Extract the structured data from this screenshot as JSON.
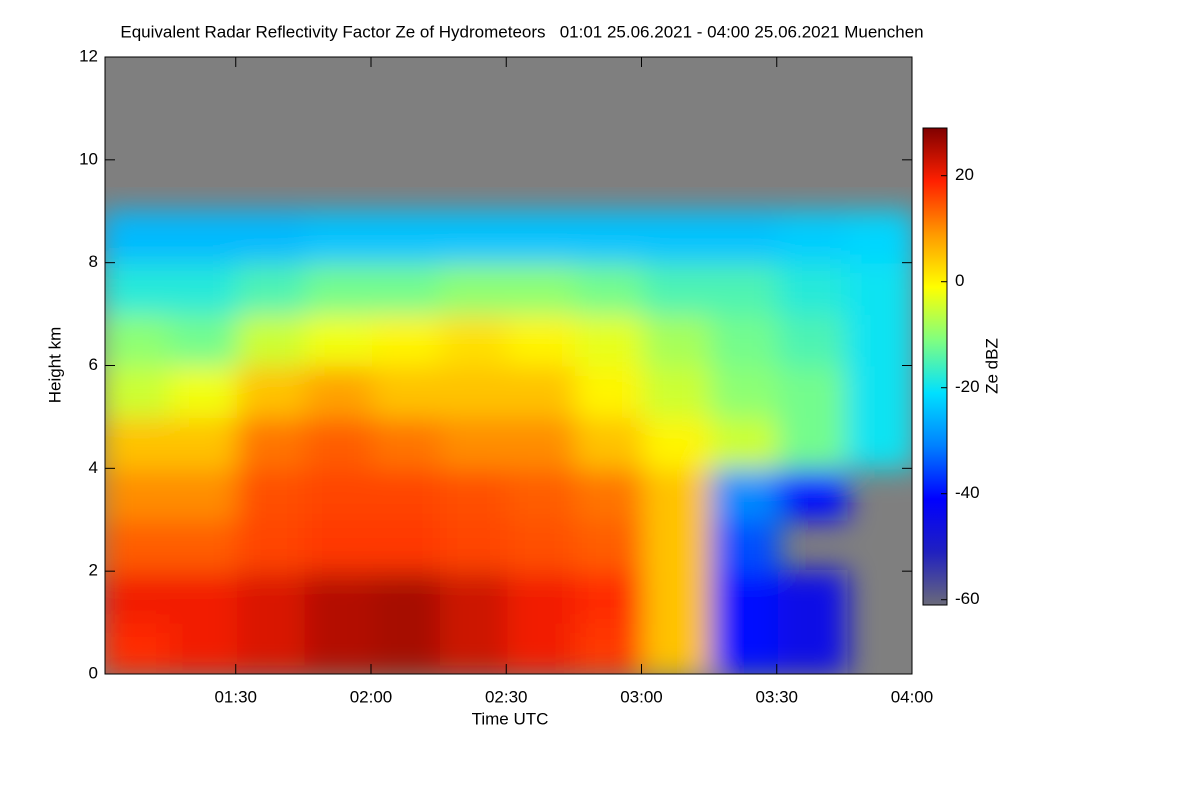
{
  "chart_data": {
    "type": "heatmap",
    "title": "Equivalent Radar Reflectivity Factor Ze of Hydrometeors   01:01 25.06.2021 - 04:00 25.06.2021 Muenchen",
    "xlabel": "Time UTC",
    "ylabel": "Height km",
    "colorbar_label": "Ze dBZ",
    "x": [
      68,
      83,
      98,
      113,
      128,
      143,
      158,
      173,
      188,
      203,
      218,
      233
    ],
    "y": [
      0.5,
      1.5,
      2.5,
      3.5,
      4.5,
      5.5,
      6.5,
      7.5,
      8.5,
      9.5,
      10.5,
      11.5
    ],
    "z": [
      [
        18,
        20,
        22,
        25,
        26,
        23,
        20,
        17,
        5,
        -40,
        -45,
        null
      ],
      [
        20,
        20,
        22,
        25,
        26,
        23,
        20,
        18,
        5,
        -40,
        -45,
        null
      ],
      [
        14,
        14,
        16,
        17,
        17,
        16,
        15,
        14,
        5,
        -35,
        null,
        null
      ],
      [
        10,
        10,
        15,
        16,
        16,
        15,
        14,
        12,
        5,
        -30,
        -40,
        null
      ],
      [
        5,
        5,
        12,
        14,
        12,
        10,
        10,
        5,
        0,
        -5,
        -12,
        -20
      ],
      [
        -5,
        -2,
        5,
        8,
        5,
        5,
        5,
        0,
        -5,
        -10,
        -12,
        -20
      ],
      [
        -10,
        -12,
        -5,
        -2,
        0,
        2,
        0,
        -3,
        -8,
        -12,
        -15,
        -20
      ],
      [
        -18,
        -18,
        -15,
        -12,
        -12,
        -10,
        -10,
        -12,
        -15,
        -15,
        -18,
        -20
      ],
      [
        -25,
        -25,
        -25,
        -24,
        -24,
        -24,
        -24,
        -24,
        -24,
        -24,
        -23,
        -22
      ],
      [
        null,
        null,
        null,
        null,
        null,
        null,
        null,
        null,
        null,
        null,
        null,
        null
      ],
      [
        null,
        null,
        null,
        null,
        null,
        null,
        null,
        null,
        null,
        null,
        null,
        null
      ],
      [
        null,
        null,
        null,
        null,
        null,
        null,
        null,
        null,
        null,
        null,
        null,
        null
      ]
    ],
    "xlim": [
      61,
      240
    ],
    "xticks": [
      {
        "value": 90,
        "label": "01:30"
      },
      {
        "value": 120,
        "label": "02:00"
      },
      {
        "value": 150,
        "label": "02:30"
      },
      {
        "value": 180,
        "label": "03:00"
      },
      {
        "value": 210,
        "label": "03:30"
      },
      {
        "value": 240,
        "label": "04:00"
      }
    ],
    "ylim": [
      0,
      12
    ],
    "yticks": [
      0,
      2,
      4,
      6,
      8,
      10,
      12
    ],
    "clim": [
      -61,
      29
    ],
    "cticks": [
      -60,
      -40,
      -20,
      0,
      20
    ],
    "colorscale": [
      "#6a6a7a",
      "#2020c0",
      "#0000ff",
      "#0080ff",
      "#00e0ff",
      "#80ff80",
      "#ffff00",
      "#ff9900",
      "#ff2000",
      "#800000"
    ],
    "nodata_color": "#7f7f7f"
  }
}
